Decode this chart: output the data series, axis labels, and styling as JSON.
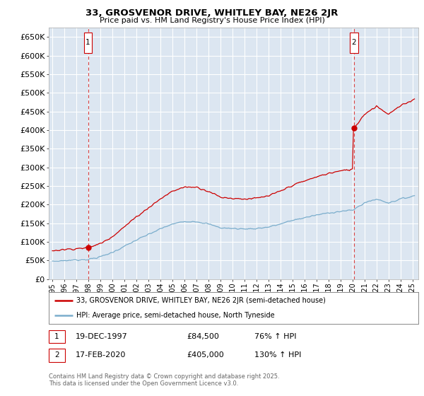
{
  "title": "33, GROSVENOR DRIVE, WHITLEY BAY, NE26 2JR",
  "subtitle": "Price paid vs. HM Land Registry's House Price Index (HPI)",
  "ylabel_ticks": [
    0,
    50000,
    100000,
    150000,
    200000,
    250000,
    300000,
    350000,
    400000,
    450000,
    500000,
    550000,
    600000,
    650000
  ],
  "ylim": [
    0,
    675000
  ],
  "xlim_start": 1994.7,
  "xlim_end": 2025.5,
  "purchase1_date": 1997.97,
  "purchase1_price": 84500,
  "purchase2_date": 2020.12,
  "purchase2_price": 405000,
  "legend_line1": "33, GROSVENOR DRIVE, WHITLEY BAY, NE26 2JR (semi-detached house)",
  "legend_line2": "HPI: Average price, semi-detached house, North Tyneside",
  "annotation1_date": "19-DEC-1997",
  "annotation1_price": "£84,500",
  "annotation1_hpi": "76% ↑ HPI",
  "annotation2_date": "17-FEB-2020",
  "annotation2_price": "£405,000",
  "annotation2_hpi": "130% ↑ HPI",
  "footer": "Contains HM Land Registry data © Crown copyright and database right 2025.\nThis data is licensed under the Open Government Licence v3.0.",
  "red_line_color": "#cc0000",
  "blue_line_color": "#7aadcc",
  "plot_bg_color": "#dce6f1",
  "grid_color": "#ffffff",
  "dashed_vline_color": "#dd4444"
}
